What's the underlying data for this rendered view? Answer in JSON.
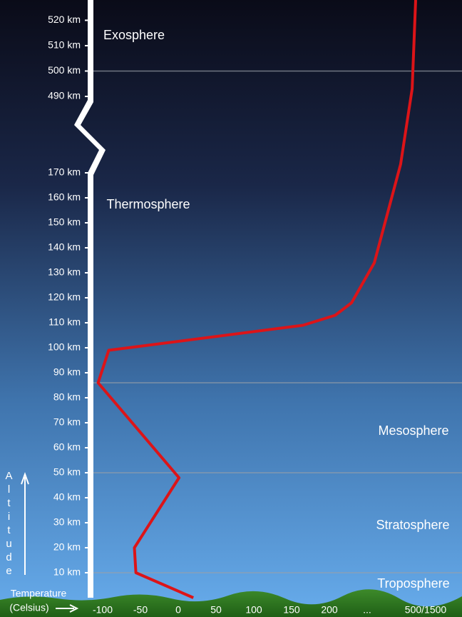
{
  "chart_data": {
    "type": "line",
    "x": [
      20,
      -56,
      -58,
      1,
      -106,
      -92,
      165,
      218,
      269,
      340,
      422,
      458,
      469
    ],
    "values": [
      0,
      10,
      20,
      48,
      86,
      99,
      109,
      113,
      118,
      134,
      206,
      493,
      528
    ],
    "color": "#dc1418",
    "xlim": [
      -100,
      500
    ],
    "xbreak": 200,
    "xticks": [
      -100,
      -50,
      0,
      50,
      100,
      150,
      200,
      {
        "value": 500,
        "label": "500/1500"
      }
    ],
    "x_break_label": "...",
    "ylim": [
      0,
      528
    ],
    "ybreak": [
      170,
      490
    ],
    "yticks": [
      {
        "value": 10,
        "label": "10 km"
      },
      {
        "value": 20,
        "label": "20 km"
      },
      {
        "value": 30,
        "label": "30 km"
      },
      {
        "value": 40,
        "label": "40 km"
      },
      {
        "value": 50,
        "label": "50 km"
      },
      {
        "value": 60,
        "label": "60 km"
      },
      {
        "value": 70,
        "label": "70 km"
      },
      {
        "value": 80,
        "label": "80 km"
      },
      {
        "value": 90,
        "label": "90 km"
      },
      {
        "value": 100,
        "label": "100 km"
      },
      {
        "value": 110,
        "label": "110 km"
      },
      {
        "value": 120,
        "label": "120 km"
      },
      {
        "value": 130,
        "label": "130 km"
      },
      {
        "value": 140,
        "label": "140 km"
      },
      {
        "value": 150,
        "label": "150 km"
      },
      {
        "value": 160,
        "label": "160 km"
      },
      {
        "value": 170,
        "label": "170 km"
      },
      {
        "value": 490,
        "label": "490 km"
      },
      {
        "value": 500,
        "label": "500 km"
      },
      {
        "value": 510,
        "label": "510 km"
      },
      {
        "value": 520,
        "label": "520 km"
      }
    ],
    "boundary_lines": [
      10,
      50,
      86,
      500
    ],
    "layers": [
      "Exosphere",
      "Thermosphere",
      "Mesosphere",
      "Stratosphere",
      "Troposphere"
    ],
    "x_label": [
      "Temperature",
      "(Celsius)"
    ],
    "y_label": "Altitude"
  }
}
